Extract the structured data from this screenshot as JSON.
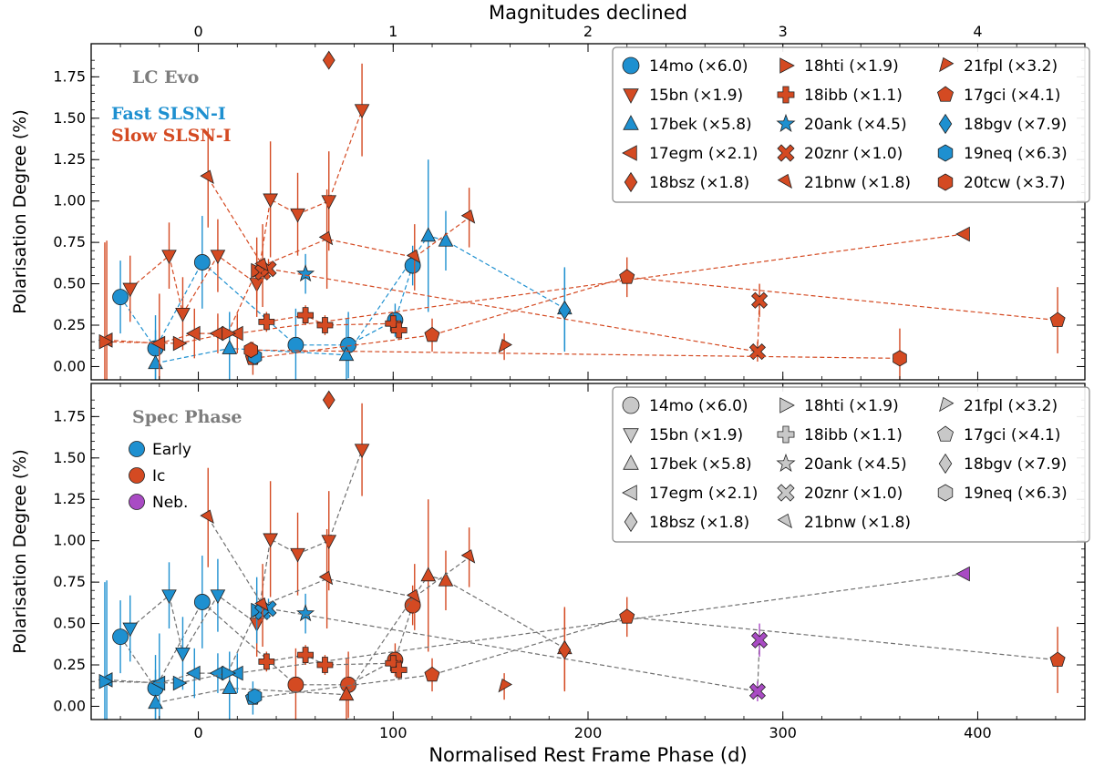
{
  "colors": {
    "fast": "#1e90d0",
    "slow": "#d44a22",
    "gray": "#c8c8c8",
    "neb": "#a94bc4",
    "text_gray": "#7d7d7d"
  },
  "chart_data": {
    "type": "scatter",
    "xlabel": "Normalised Rest Frame Phase (d)",
    "top_xlabel": "Magnitudes declined",
    "ylabel": "Polarisation Degree (%)",
    "xlim": [
      -55,
      455
    ],
    "ylim": [
      -0.08,
      1.95
    ],
    "x_ticks": [
      0,
      100,
      200,
      300,
      400
    ],
    "y_ticks": [
      "0.00",
      "0.25",
      "0.50",
      "0.75",
      "1.00",
      "1.25",
      "1.50",
      "1.75"
    ],
    "top_ticks": [
      {
        "label": "0",
        "x": 0
      },
      {
        "label": "1",
        "x": 100
      },
      {
        "label": "2",
        "x": 200
      },
      {
        "label": "3",
        "x": 300
      },
      {
        "label": "4",
        "x": 400
      }
    ],
    "panels": [
      {
        "annotation": "LC Evo",
        "groups": [
          {
            "label": "Fast SLSN-I",
            "color": "#1e90d0"
          },
          {
            "label": "Slow SLSN-I",
            "color": "#d44a22"
          }
        ],
        "legend_ncol": 3,
        "legend_names": [
          "14mo (×6.0)",
          "15bn (×1.9)",
          "17bek (×5.8)",
          "17egm (×2.1)",
          "18bsz (×1.8)",
          "18hti (×1.9)",
          "18ibb (×1.1)",
          "20ank (×4.5)",
          "20znr (×1.0)",
          "21bnw (×1.8)",
          "21fpl (×3.2)",
          "17gci (×4.1)",
          "18bgv (×7.9)",
          "19neq (×6.3)",
          "20tcw (×3.7)"
        ]
      },
      {
        "annotation": "Spec Phase",
        "groups": [
          {
            "label": "Early",
            "color": "#1e90d0"
          },
          {
            "label": "Ic",
            "color": "#d44a22"
          },
          {
            "label": "Neb.",
            "color": "#a94bc4"
          }
        ],
        "legend_ncol": 3,
        "legend_names": [
          "14mo (×6.0)",
          "15bn (×1.9)",
          "17bek (×5.8)",
          "17egm (×2.1)",
          "18bsz (×1.8)",
          "18hti (×1.9)",
          "18ibb (×1.1)",
          "20ank (×4.5)",
          "20znr (×1.0)",
          "21bnw (×1.8)",
          "21fpl (×3.2)",
          "17gci (×4.1)",
          "18bgv (×7.9)",
          "19neq (×6.3)"
        ]
      }
    ],
    "series": [
      {
        "name": "14mo (×6.0)",
        "marker": "circle",
        "lc": "fast",
        "x": [
          -40,
          -22,
          2,
          50,
          77,
          101,
          110
        ],
        "y": [
          0.42,
          0.11,
          0.63,
          0.13,
          0.13,
          0.28,
          0.61
        ],
        "err": [
          0.22,
          0.2,
          0.28,
          0.22,
          0.2,
          0.1,
          0.12
        ],
        "spec": [
          "early",
          "early",
          "early",
          "ic",
          "ic",
          "ic",
          "ic"
        ]
      },
      {
        "name": "15bn (×1.9)",
        "marker": "tri_down",
        "lc": "slow",
        "x": [
          -35,
          -15,
          -8,
          10,
          30,
          37,
          51,
          67,
          84
        ],
        "y": [
          0.47,
          0.67,
          0.32,
          0.67,
          0.5,
          1.01,
          0.92,
          1.0,
          1.55
        ],
        "err": [
          0.2,
          0.2,
          0.22,
          0.22,
          0.2,
          0.35,
          0.25,
          0.3,
          0.28
        ],
        "spec": [
          "early",
          "early",
          "early",
          "early",
          "ic",
          "ic",
          "ic",
          "ic",
          "ic"
        ]
      },
      {
        "name": "17bek (×5.8)",
        "marker": "tri_up",
        "lc": "fast",
        "x": [
          -22,
          16,
          76,
          118,
          127,
          188
        ],
        "y": [
          0.02,
          0.11,
          0.07,
          0.79,
          0.76,
          0.35
        ],
        "err": [
          0.2,
          0.22,
          0.22,
          0.46,
          0.18,
          0.25
        ],
        "spec": [
          "early",
          "early",
          "ic",
          "ic",
          "ic",
          "ic"
        ]
      },
      {
        "name": "17egm (×2.1)",
        "marker": "tri_left",
        "lc": "slow",
        "x": [
          -47,
          -20,
          -2,
          10,
          20,
          393
        ],
        "y": [
          0.16,
          0.14,
          0.2,
          0.2,
          0.2,
          0.8
        ],
        "err": [
          0.6,
          0.3,
          0.15,
          0.12,
          0.12,
          0.0
        ],
        "spec": [
          "early",
          "early",
          "early",
          "early",
          "early",
          "neb"
        ]
      },
      {
        "name": "18bsz (×1.8)",
        "marker": "diamond",
        "lc": "slow",
        "x": [
          67
        ],
        "y": [
          1.85
        ],
        "err": [
          0.0
        ],
        "spec": [
          "ic"
        ]
      },
      {
        "name": "18hti (×1.9)",
        "marker": "tri_right",
        "lc": "slow",
        "x": [
          -48,
          -10,
          15,
          30
        ],
        "y": [
          0.15,
          0.14,
          0.2,
          0.58
        ],
        "err": [
          0.6,
          0.0,
          0.0,
          0.2
        ],
        "spec": [
          "early",
          "early",
          "early",
          "early"
        ]
      },
      {
        "name": "18ibb (×1.1)",
        "marker": "plus",
        "lc": "slow",
        "x": [
          35,
          55,
          65,
          100,
          103
        ],
        "y": [
          0.27,
          0.31,
          0.25,
          0.26,
          0.22
        ],
        "err": [
          0.06,
          0.06,
          0.06,
          0.06,
          0.06
        ],
        "spec": [
          "ic",
          "ic",
          "ic",
          "ic",
          "ic"
        ]
      },
      {
        "name": "20ank (×4.5)",
        "marker": "star",
        "lc": "fast",
        "x": [
          55
        ],
        "y": [
          0.56
        ],
        "err": [
          0.12
        ],
        "spec": [
          "early"
        ]
      },
      {
        "name": "20znr (×1.0)",
        "marker": "x",
        "lc": "slow",
        "x": [
          33,
          36,
          287,
          288
        ],
        "y": [
          0.57,
          0.59,
          0.09,
          0.4
        ],
        "err": [
          0.06,
          0.06,
          0.06,
          0.1
        ],
        "spec": [
          "early",
          "early",
          "neb",
          "neb"
        ]
      },
      {
        "name": "21bnw (×1.8)",
        "marker": "tri_down_right",
        "lc": "slow",
        "x": [
          5,
          33,
          66,
          111,
          139
        ],
        "y": [
          1.14,
          0.61,
          0.77,
          0.66,
          0.9
        ],
        "err": [
          0.3,
          0.25,
          0.3,
          0.2,
          0.18
        ],
        "spec": [
          "ic",
          "ic",
          "ic",
          "ic",
          "ic"
        ]
      },
      {
        "name": "21fpl (×3.2)",
        "marker": "tri_down_left",
        "lc": "slow",
        "x": [
          157
        ],
        "y": [
          0.12
        ],
        "err": [
          0.08
        ],
        "spec": [
          "ic"
        ]
      },
      {
        "name": "17gci (×4.1)",
        "marker": "pentagon",
        "lc": "slow",
        "x": [
          28,
          120,
          220,
          441
        ],
        "y": [
          0.05,
          0.19,
          0.54,
          0.28
        ],
        "err": [
          0.1,
          0.1,
          0.12,
          0.2
        ],
        "spec": [
          "early",
          "ic",
          "ic",
          "ic"
        ]
      },
      {
        "name": "18bgv (×7.9)",
        "marker": "diamond",
        "lc": "fast",
        "x": [
          188
        ],
        "y": [
          0.34
        ],
        "err": [
          0.25
        ],
        "spec": [
          "ic"
        ]
      },
      {
        "name": "19neq (×6.3)",
        "marker": "hexagon",
        "lc": "fast",
        "x": [
          29
        ],
        "y": [
          0.06
        ],
        "err": [
          0.0
        ],
        "spec": [
          "early"
        ]
      },
      {
        "name": "20tcw (×3.7)",
        "marker": "hexagon",
        "lc": "slow",
        "x": [
          27,
          360
        ],
        "y": [
          0.1,
          0.05
        ],
        "err": [
          0.05,
          0.18
        ],
        "spec": [
          "ic",
          "ic"
        ],
        "lc_only": true
      }
    ]
  }
}
